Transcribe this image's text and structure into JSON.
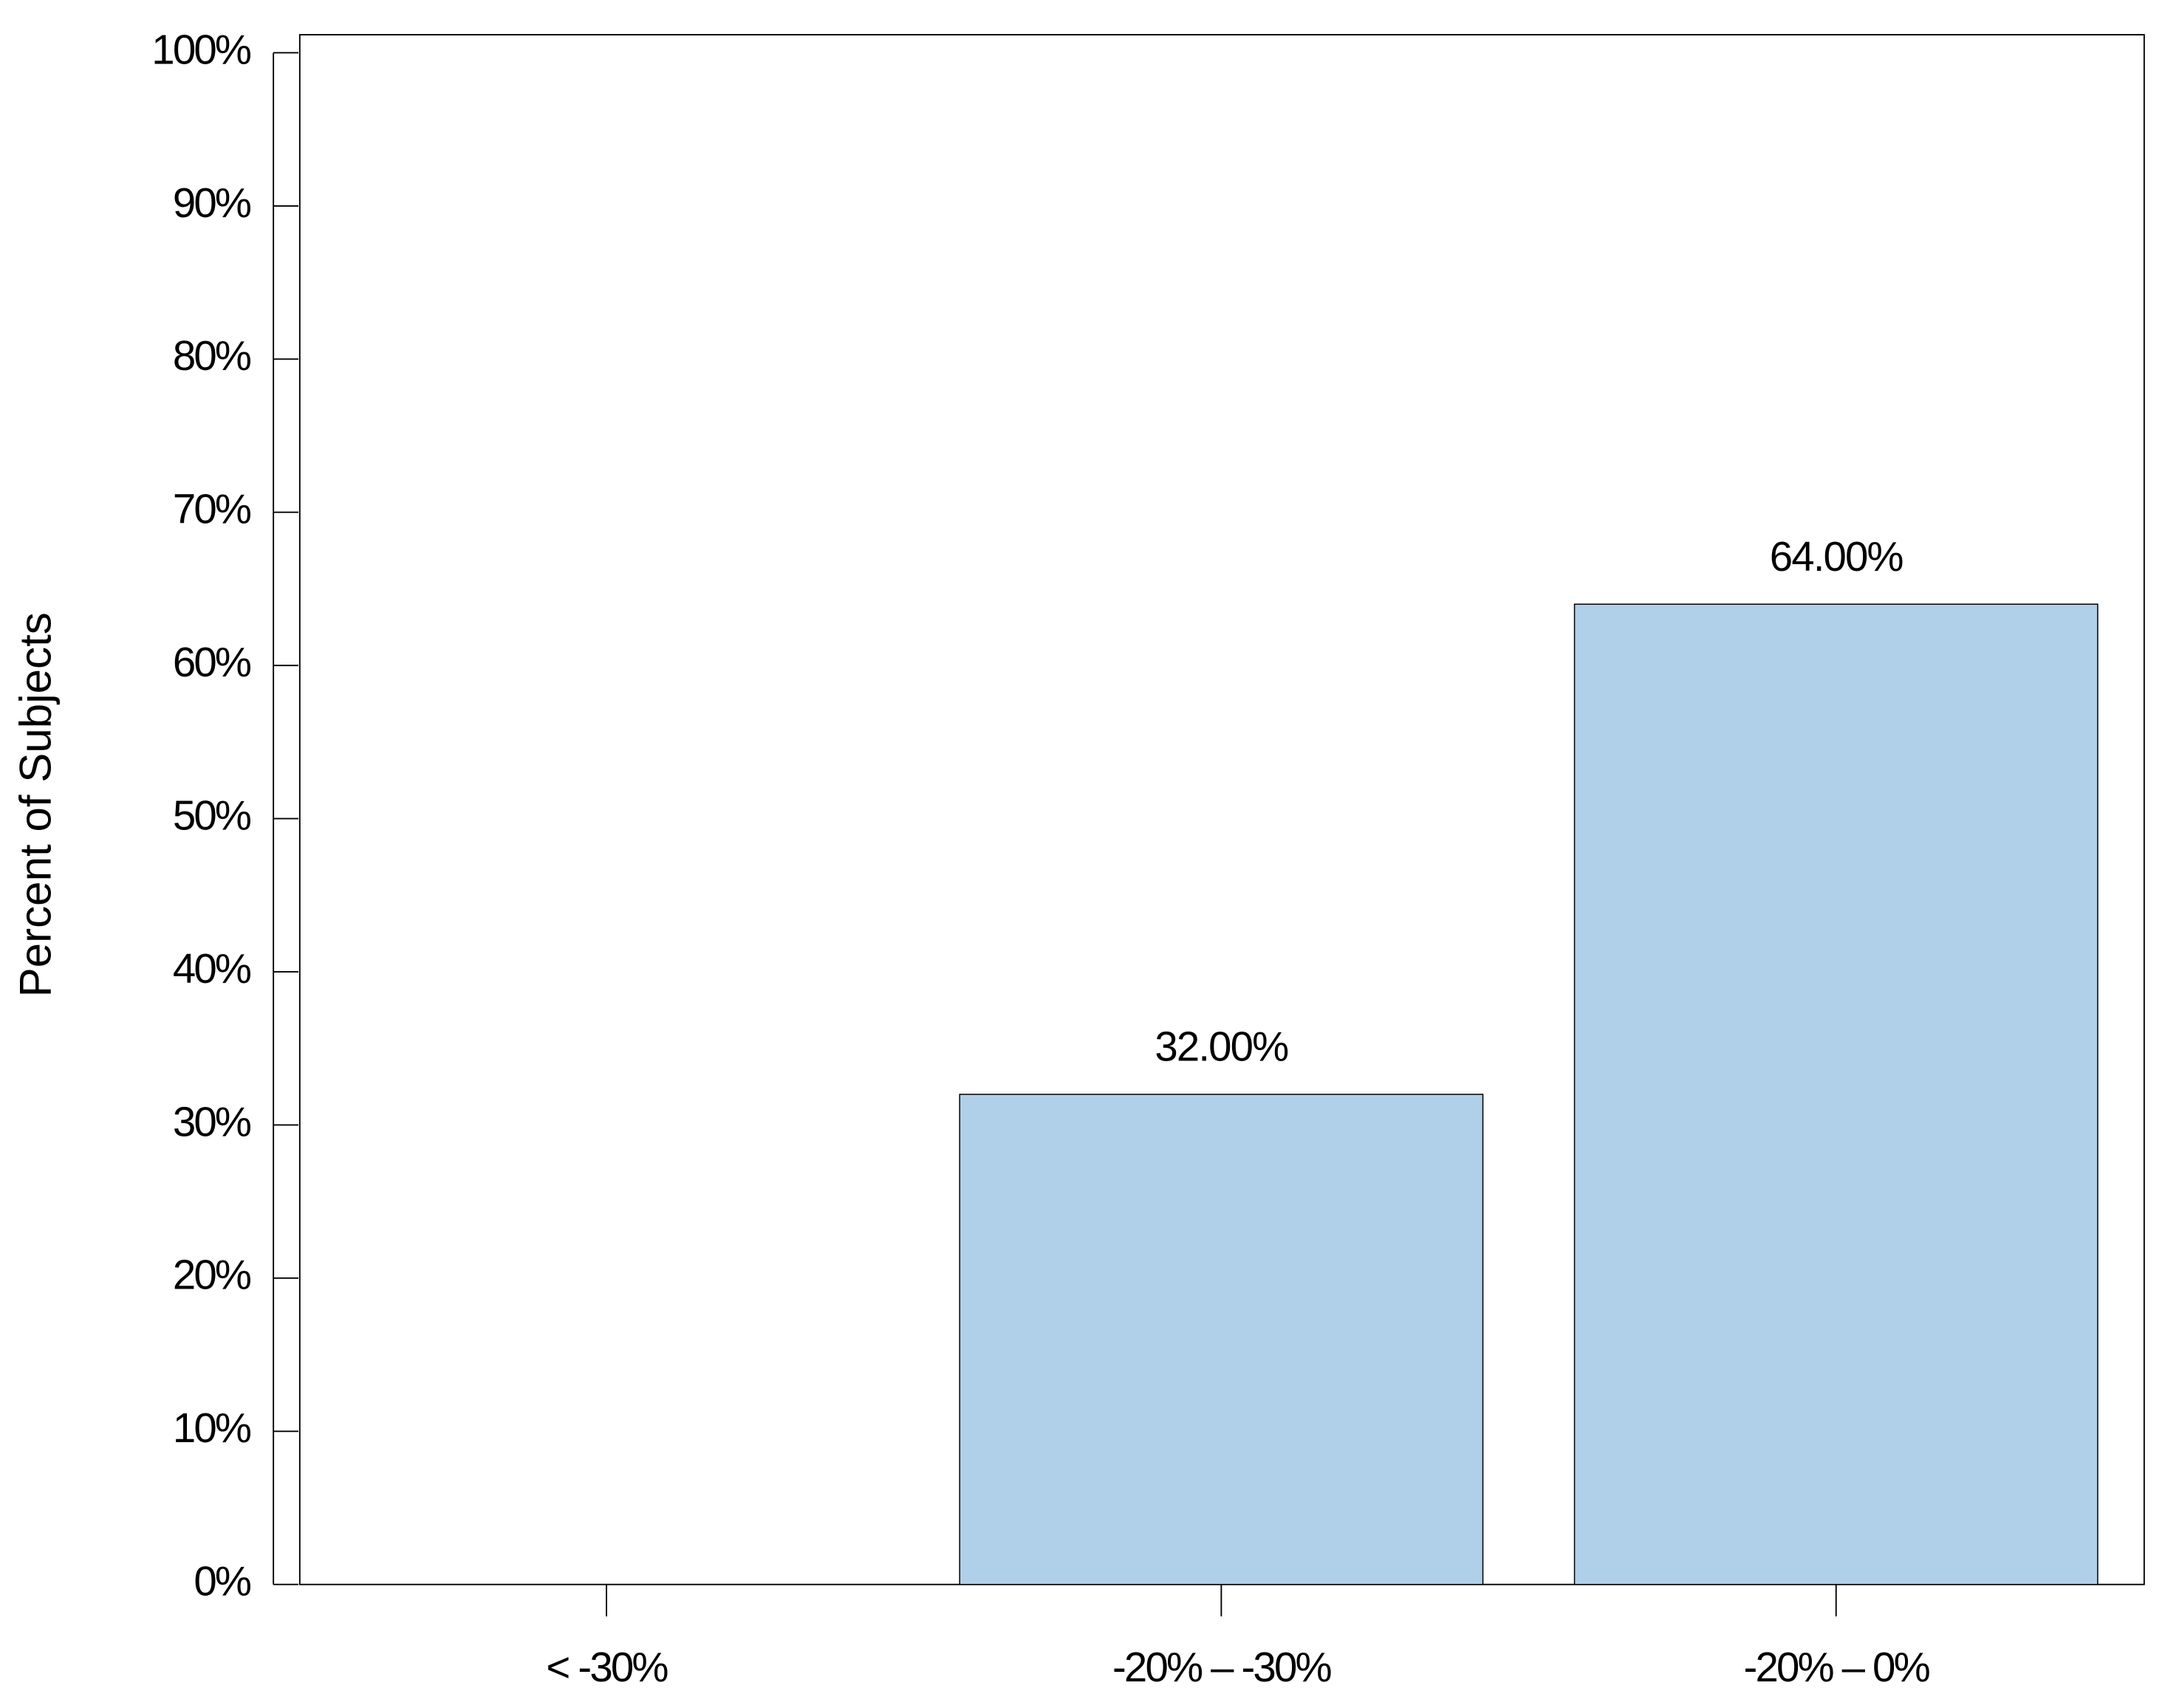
{
  "chart_data": {
    "type": "bar",
    "y_label": "Percent of Subjects",
    "categories": [
      "< -30%",
      "-20% – -30%",
      "-20% – 0%"
    ],
    "values": [
      0,
      32,
      64
    ],
    "value_labels": [
      null,
      "32.00%",
      "64.00%"
    ],
    "color": "#b0cfe8",
    "ylim": [
      0,
      100
    ],
    "yticks": [
      {
        "value": 0,
        "label": "0%"
      },
      {
        "value": 10,
        "label": "10%"
      },
      {
        "value": 20,
        "label": "20%"
      },
      {
        "value": 30,
        "label": "30%"
      },
      {
        "value": 40,
        "label": "40%"
      },
      {
        "value": 50,
        "label": "50%"
      },
      {
        "value": 60,
        "label": "60%"
      },
      {
        "value": 70,
        "label": "70%"
      },
      {
        "value": 80,
        "label": "80%"
      },
      {
        "value": 90,
        "label": "90%"
      },
      {
        "value": 100,
        "label": "100%"
      }
    ],
    "grid": false
  }
}
